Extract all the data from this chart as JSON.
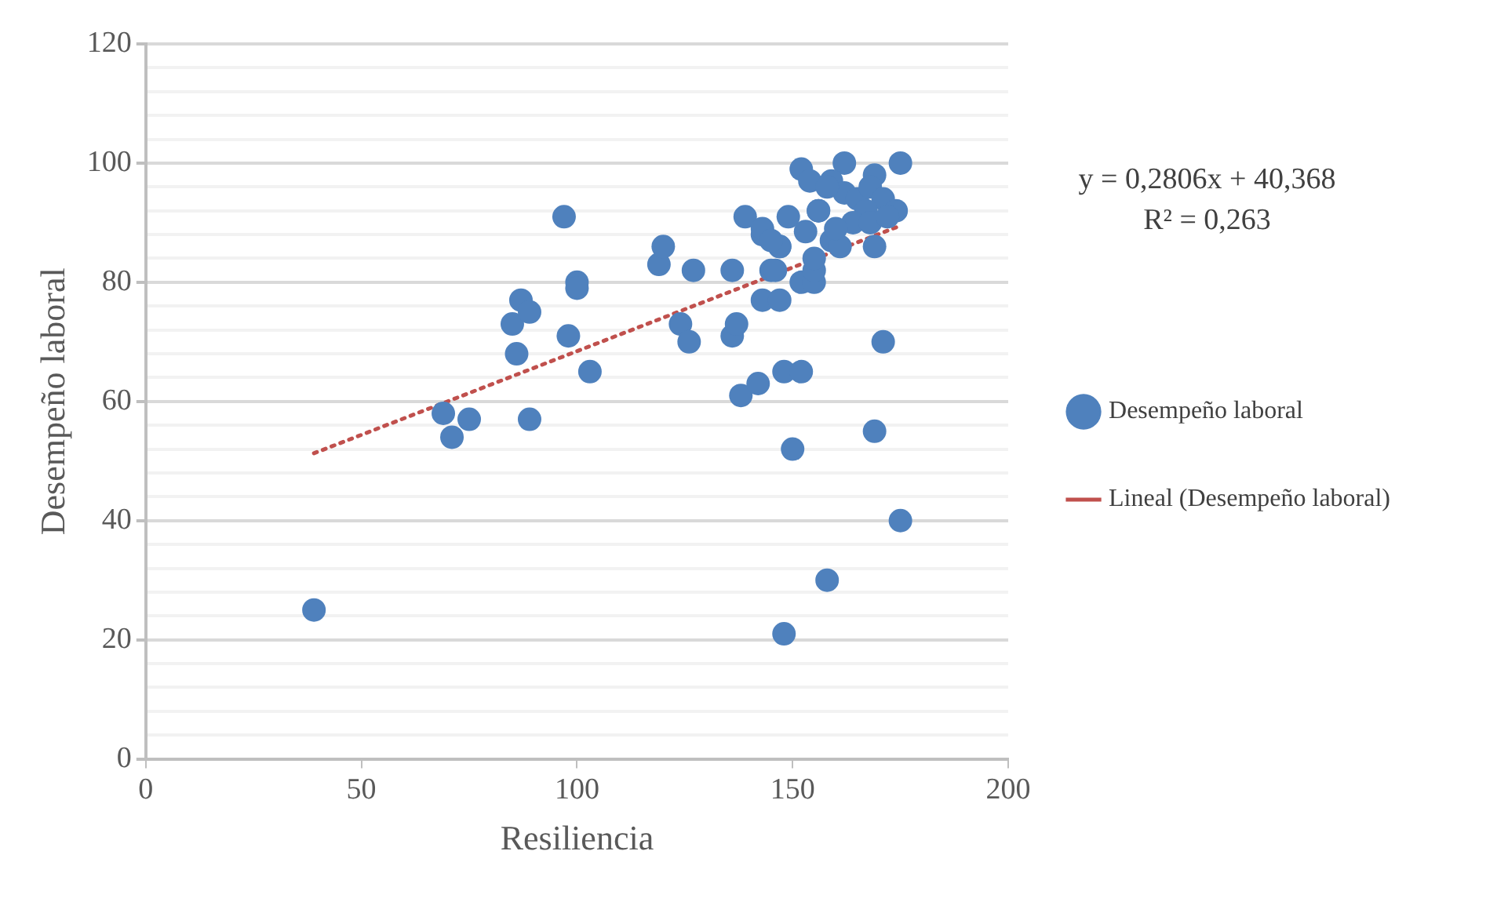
{
  "chart_data": {
    "type": "scatter",
    "xlabel": "Resiliencia",
    "ylabel": "Desempeño laboral",
    "xlim": [
      0,
      200
    ],
    "xticks": [
      0,
      50,
      100,
      150,
      200
    ],
    "ylim": [
      0,
      120
    ],
    "yticks": [
      0,
      {
        "value": 4,
        "label": null
      },
      {
        "value": 8,
        "label": null
      },
      {
        "value": 12,
        "label": null
      },
      {
        "value": 16,
        "label": null
      },
      20,
      {
        "value": 24,
        "label": null
      },
      {
        "value": 28,
        "label": null
      },
      {
        "value": 32,
        "label": null
      },
      {
        "value": 36,
        "label": null
      },
      40,
      {
        "value": 44,
        "label": null
      },
      {
        "value": 48,
        "label": null
      },
      {
        "value": 52,
        "label": null
      },
      {
        "value": 56,
        "label": null
      },
      60,
      {
        "value": 64,
        "label": null
      },
      {
        "value": 68,
        "label": null
      },
      {
        "value": 72,
        "label": null
      },
      {
        "value": 76,
        "label": null
      },
      80,
      {
        "value": 84,
        "label": null
      },
      {
        "value": 88,
        "label": null
      },
      {
        "value": 92,
        "label": null
      },
      {
        "value": 96,
        "label": null
      },
      100,
      {
        "value": 104,
        "label": null
      },
      {
        "value": 108,
        "label": null
      },
      {
        "value": 112,
        "label": null
      },
      {
        "value": 116,
        "label": null
      },
      120
    ],
    "grid": "y",
    "legend": "right",
    "marker": "circle",
    "annotations": [
      "y = 0,2806x + 40,368",
      "R² = 0,263"
    ],
    "series": [
      {
        "name": "Desempeño laboral",
        "color": "#4f81bd",
        "type": "scatter",
        "x": [
          39,
          69,
          71,
          75,
          89,
          85,
          87,
          89,
          86,
          97,
          98,
          100,
          100,
          103,
          119,
          120,
          127,
          124,
          126,
          136,
          136,
          137,
          138,
          139,
          142,
          143,
          145,
          143,
          146,
          147,
          147,
          148,
          149,
          148,
          152,
          150,
          169,
          171,
          175,
          158,
          152,
          155,
          155,
          155,
          159,
          161,
          169,
          143,
          147,
          145,
          153,
          156,
          152,
          154,
          162,
          175,
          169,
          159,
          162,
          165,
          168,
          171,
          174,
          167,
          164,
          168,
          158,
          156,
          160,
          172
        ],
        "values": [
          25,
          58,
          54,
          57,
          57,
          73,
          77,
          75,
          68,
          91,
          71,
          80,
          79,
          65,
          83,
          86,
          82,
          73,
          70,
          82,
          71,
          73,
          61,
          91,
          63,
          88,
          82,
          77,
          82,
          77,
          86,
          21,
          91,
          65,
          65,
          52,
          55,
          70,
          40,
          30,
          80,
          80,
          82,
          84,
          87,
          86,
          86,
          89,
          86,
          87,
          88.5,
          92,
          99,
          97,
          100,
          100,
          98,
          97,
          95,
          94,
          96,
          94,
          92,
          92,
          90,
          90,
          96,
          92,
          89,
          91
        ]
      },
      {
        "name": "Lineal (Desempeño laboral)",
        "color": "#c0504d",
        "type": "line",
        "line_style": "dotted",
        "marker": "none",
        "x": [
          39,
          175
        ],
        "values": [
          51.3,
          89.5
        ]
      }
    ]
  }
}
